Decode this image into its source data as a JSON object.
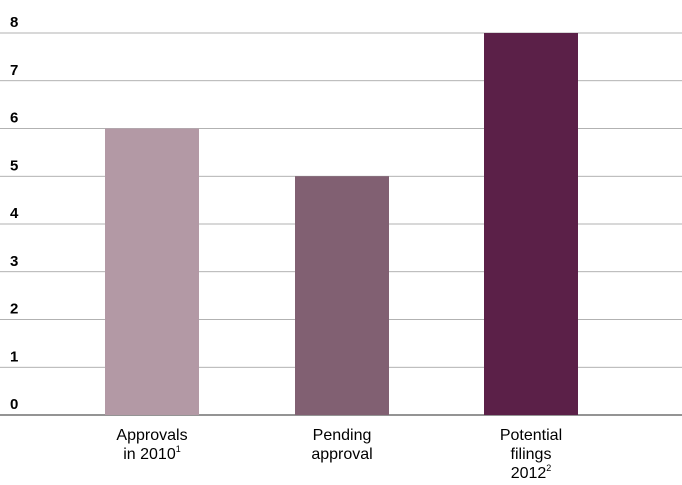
{
  "chart_data": {
    "type": "bar",
    "categories": [
      {
        "lines": [
          "Approvals",
          "in 2010"
        ],
        "footnote": "1"
      },
      {
        "lines": [
          "Pending",
          "approval"
        ],
        "footnote": ""
      },
      {
        "lines": [
          "Potential",
          "filings",
          "2012"
        ],
        "footnote": "2"
      }
    ],
    "values": [
      6,
      5,
      8
    ],
    "colors": [
      "#b399a5",
      "#816072",
      "#5b2048"
    ],
    "title": "",
    "xlabel": "",
    "ylabel": "",
    "ylim": [
      0,
      8
    ],
    "yticks": [
      0,
      1,
      2,
      3,
      4,
      5,
      6,
      7,
      8
    ],
    "grid": true,
    "legend": "none"
  }
}
